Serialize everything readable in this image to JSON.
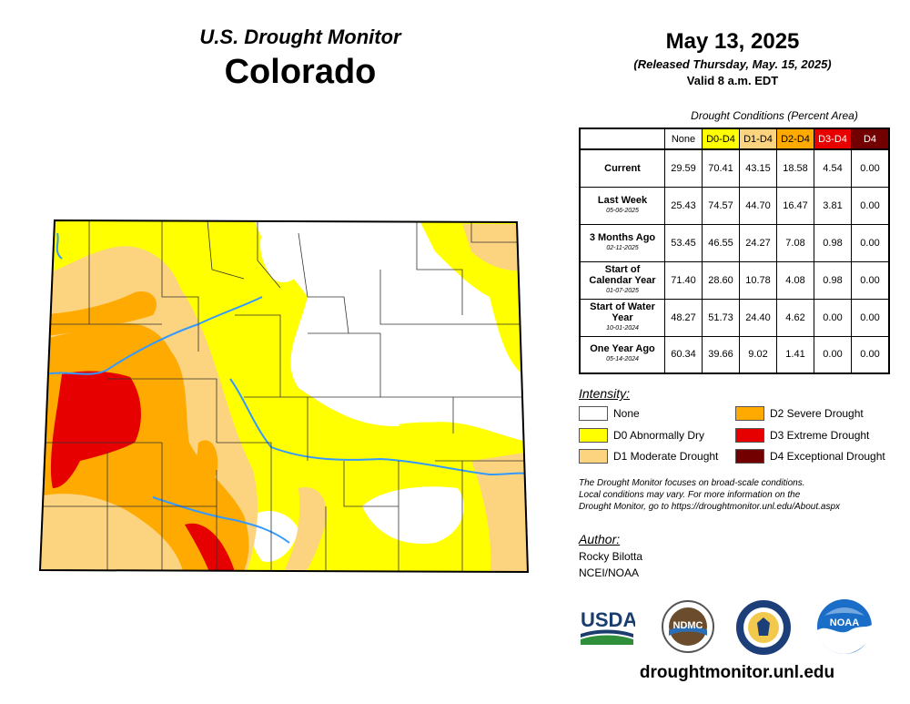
{
  "header": {
    "subtitle": "U.S. Drought Monitor",
    "state": "Colorado",
    "date": "May 13, 2025",
    "released": "(Released Thursday, May. 15, 2025)",
    "valid": "Valid 8 a.m. EDT"
  },
  "table": {
    "caption": "Drought Conditions (Percent Area)",
    "columns": [
      {
        "label": "None",
        "color": "#ffffff",
        "text": "#000000"
      },
      {
        "label": "D0-D4",
        "color": "#ffff00",
        "text": "#000000"
      },
      {
        "label": "D1-D4",
        "color": "#fcd37f",
        "text": "#000000"
      },
      {
        "label": "D2-D4",
        "color": "#ffaa00",
        "text": "#000000"
      },
      {
        "label": "D3-D4",
        "color": "#e60000",
        "text": "#ffffff"
      },
      {
        "label": "D4",
        "color": "#730000",
        "text": "#ffffff"
      }
    ],
    "rows": [
      {
        "label": "Current",
        "sub": "",
        "values": [
          "29.59",
          "70.41",
          "43.15",
          "18.58",
          "4.54",
          "0.00"
        ]
      },
      {
        "label": "Last Week",
        "sub": "05-06-2025",
        "values": [
          "25.43",
          "74.57",
          "44.70",
          "16.47",
          "3.81",
          "0.00"
        ]
      },
      {
        "label": "3 Months Ago",
        "sub": "02-11-2025",
        "values": [
          "53.45",
          "46.55",
          "24.27",
          "7.08",
          "0.98",
          "0.00"
        ]
      },
      {
        "label": "Start of Calendar Year",
        "sub": "01-07-2025",
        "values": [
          "71.40",
          "28.60",
          "10.78",
          "4.08",
          "0.98",
          "0.00"
        ]
      },
      {
        "label": "Start of Water Year",
        "sub": "10-01-2024",
        "values": [
          "48.27",
          "51.73",
          "24.40",
          "4.62",
          "0.00",
          "0.00"
        ]
      },
      {
        "label": "One Year Ago",
        "sub": "05-14-2024",
        "values": [
          "60.34",
          "39.66",
          "9.02",
          "1.41",
          "0.00",
          "0.00"
        ]
      }
    ]
  },
  "legend": {
    "title": "Intensity:",
    "items": [
      {
        "label": "None",
        "color": "#ffffff"
      },
      {
        "label": "D0 Abnormally Dry",
        "color": "#ffff00"
      },
      {
        "label": "D1 Moderate Drought",
        "color": "#fcd37f"
      },
      {
        "label": "D2 Severe Drought",
        "color": "#ffaa00"
      },
      {
        "label": "D3 Extreme Drought",
        "color": "#e60000"
      },
      {
        "label": "D4 Exceptional Drought",
        "color": "#730000"
      }
    ]
  },
  "note": {
    "line1": "The Drought Monitor focuses on broad-scale conditions.",
    "line2": "Local conditions may vary. For more information on the",
    "line3": "Drought Monitor, go to https://droughtmonitor.unl.edu/About.aspx"
  },
  "author": {
    "title": "Author:",
    "name": "Rocky Bilotta",
    "org": "NCEI/NOAA"
  },
  "logos": {
    "usda": "USDA",
    "ndmc": "NDMC",
    "noaa": "NOAA"
  },
  "website": "droughtmonitor.unl.edu"
}
